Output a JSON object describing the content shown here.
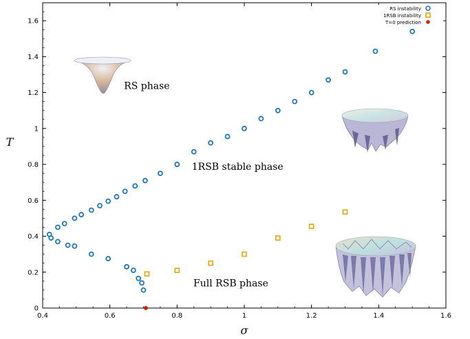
{
  "chart_data": {
    "type": "scatter",
    "xlabel": "σ",
    "ylabel": "T",
    "xlim": [
      0.4,
      1.6
    ],
    "ylim": [
      0,
      1.7
    ],
    "x_ticks": [
      "0.4",
      "0.6",
      "0.8",
      "1",
      "1.2",
      "1.4",
      "1.6"
    ],
    "y_ticks": [
      "0",
      "0.2",
      "0.4",
      "0.6",
      "0.8",
      "1",
      "1.2",
      "1.4",
      "1.6"
    ],
    "legend_position": "top-right",
    "series": [
      {
        "name": "RS instability",
        "marker": "circle",
        "color": "#1f77b4",
        "points": [
          [
            0.42,
            0.41
          ],
          [
            0.425,
            0.39
          ],
          [
            0.445,
            0.45
          ],
          [
            0.445,
            0.37
          ],
          [
            0.465,
            0.47
          ],
          [
            0.475,
            0.35
          ],
          [
            0.495,
            0.345
          ],
          [
            0.495,
            0.5
          ],
          [
            0.515,
            0.52
          ],
          [
            0.545,
            0.545
          ],
          [
            0.545,
            0.3
          ],
          [
            0.57,
            0.57
          ],
          [
            0.595,
            0.595
          ],
          [
            0.595,
            0.275
          ],
          [
            0.62,
            0.62
          ],
          [
            0.645,
            0.65
          ],
          [
            0.65,
            0.23
          ],
          [
            0.67,
            0.21
          ],
          [
            0.675,
            0.68
          ],
          [
            0.685,
            0.165
          ],
          [
            0.695,
            0.14
          ],
          [
            0.7,
            0.1
          ],
          [
            0.705,
            0.71
          ],
          [
            0.75,
            0.75
          ],
          [
            0.8,
            0.8
          ],
          [
            0.85,
            0.87
          ],
          [
            0.9,
            0.92
          ],
          [
            0.95,
            0.955
          ],
          [
            1.0,
            1.0
          ],
          [
            1.05,
            1.055
          ],
          [
            1.1,
            1.1
          ],
          [
            1.15,
            1.15
          ],
          [
            1.2,
            1.2
          ],
          [
            1.25,
            1.27
          ],
          [
            1.3,
            1.315
          ],
          [
            1.39,
            1.43
          ],
          [
            1.5,
            1.54
          ]
        ]
      },
      {
        "name": "1RSB instability",
        "marker": "square",
        "color": "#e3a600",
        "points": [
          [
            0.71,
            0.19
          ],
          [
            0.8,
            0.21
          ],
          [
            0.9,
            0.25
          ],
          [
            1.0,
            0.3
          ],
          [
            1.1,
            0.39
          ],
          [
            1.2,
            0.455
          ],
          [
            1.3,
            0.535
          ]
        ]
      },
      {
        "name": "T=0 prediction",
        "marker": "dot",
        "color": "#cc2200",
        "points": [
          [
            0.707,
            0
          ]
        ]
      }
    ],
    "annotations": [
      {
        "text": "RS phase",
        "x": 0.71,
        "y": 1.22
      },
      {
        "text": "1RSB stable phase",
        "x": 0.98,
        "y": 0.77
      },
      {
        "text": "Full RSB phase",
        "x": 0.96,
        "y": 0.12
      }
    ]
  }
}
